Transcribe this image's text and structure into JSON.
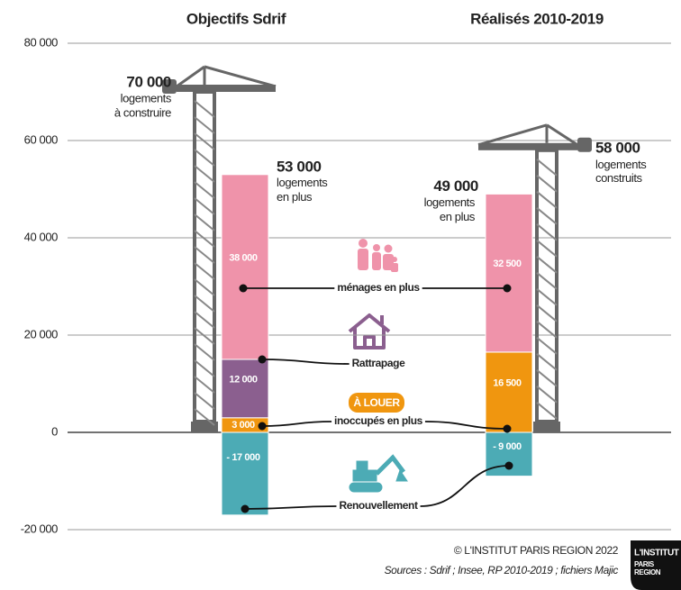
{
  "chart_data": {
    "type": "bar",
    "stacked": true,
    "categories": [
      "Objectifs Sdrif",
      "Réalisés 2010-2019"
    ],
    "series": [
      {
        "name": "inoccupés en plus",
        "color": "#f0960f",
        "values": [
          3000,
          16500
        ],
        "value_labels": [
          "3 000",
          "16 500"
        ]
      },
      {
        "name": "Rattrapage",
        "color": "#8b5f8f",
        "values": [
          12000,
          null
        ],
        "value_labels": [
          "12 000",
          null
        ]
      },
      {
        "name": "ménages en plus",
        "color": "#ef93aa",
        "values": [
          38000,
          32500
        ],
        "value_labels": [
          "38 000",
          "32 500"
        ]
      },
      {
        "name": "Renouvellement",
        "color": "#4cabb5",
        "values": [
          -17000,
          -9000
        ],
        "value_labels": [
          "- 17 000",
          "- 9 000"
        ]
      }
    ],
    "totals": [
      {
        "value": 53000,
        "label": "53 000",
        "lines": [
          "logements",
          "en plus"
        ]
      },
      {
        "value": 49000,
        "label": "49 000",
        "lines": [
          "logements",
          "en plus"
        ]
      }
    ],
    "cranes": [
      {
        "value": 70000,
        "label": "70 000",
        "lines": [
          "logements",
          "à construire"
        ]
      },
      {
        "value": 58000,
        "label": "58 000",
        "lines": [
          "logements",
          "construits"
        ]
      }
    ],
    "badge": "À LOUER",
    "ylim": [
      -20000,
      80000
    ],
    "yticks": [
      {
        "value": -20000,
        "label": "-20 000"
      },
      0,
      {
        "value": 20000,
        "label": "20 000"
      },
      {
        "value": 40000,
        "label": "40 000"
      },
      {
        "value": 60000,
        "label": "60 000"
      },
      {
        "value": 80000,
        "label": "80 000"
      }
    ],
    "grid": true
  },
  "footer": {
    "credit": "© L'INSTITUT PARIS REGION 2022",
    "sources": "Sources : Sdrif ; Insee, RP 2010-2019 ; fichiers Majic",
    "logo": [
      "L'INSTITUT",
      "PARIS",
      "REGION"
    ]
  }
}
